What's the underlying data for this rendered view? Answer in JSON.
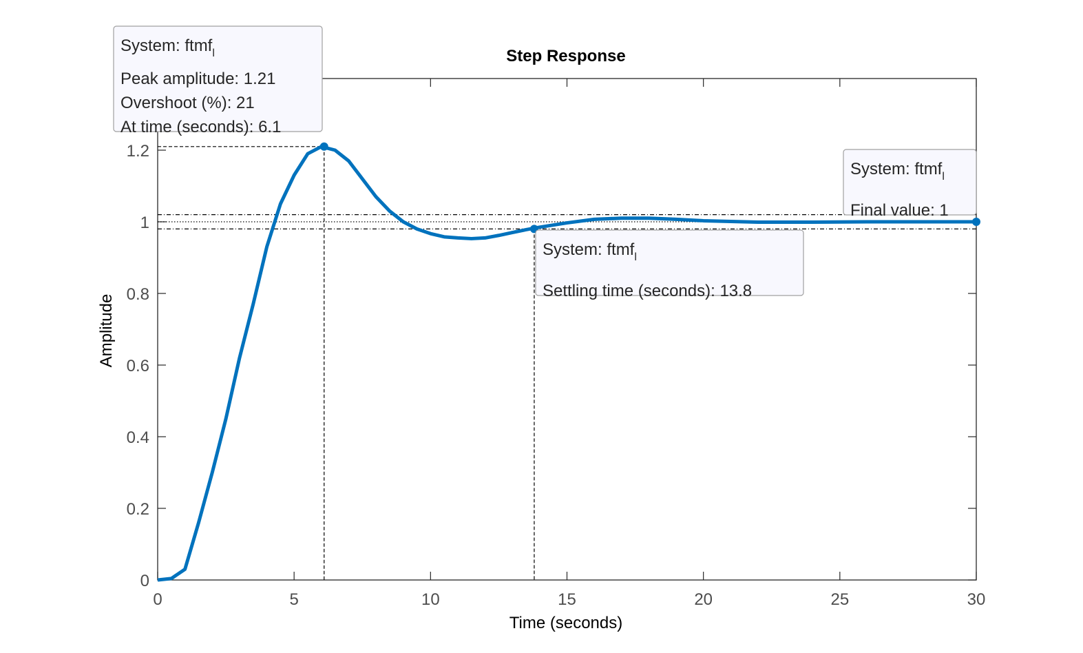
{
  "chart_data": {
    "type": "line",
    "title": "Step Response",
    "x_label": "Time (seconds)",
    "y_label": "Amplitude",
    "x": [
      0,
      0.5,
      1,
      1.5,
      2,
      2.5,
      3,
      3.5,
      4,
      4.5,
      5,
      5.5,
      6,
      6.5,
      7,
      7.5,
      8,
      8.5,
      9,
      9.5,
      10,
      10.5,
      11,
      11.5,
      12,
      12.5,
      13,
      13.5,
      14,
      15,
      16,
      17,
      18,
      19,
      20,
      22,
      24,
      26,
      28,
      30
    ],
    "series": [
      {
        "name": "ftmf",
        "color": "#0072bd",
        "values": [
          0,
          0.004,
          0.03,
          0.16,
          0.3,
          0.45,
          0.62,
          0.77,
          0.93,
          1.05,
          1.13,
          1.19,
          1.21,
          1.2,
          1.17,
          1.12,
          1.07,
          1.03,
          1.0,
          0.98,
          0.967,
          0.958,
          0.955,
          0.953,
          0.955,
          0.962,
          0.97,
          0.978,
          0.985,
          0.997,
          1.007,
          1.01,
          1.01,
          1.007,
          1.003,
          0.999,
          0.999,
          1.0,
          1.0,
          1.0
        ]
      }
    ],
    "xlim": [
      0,
      30
    ],
    "xticks": [
      0,
      5,
      10,
      15,
      20,
      25,
      30
    ],
    "ylim": [
      0,
      1.4
    ],
    "yticks": [
      0,
      0.2,
      0.4,
      0.6,
      0.8,
      1,
      1.2
    ],
    "settling_band": [
      0.98,
      1.02
    ],
    "final_value": 1,
    "annotations": [
      {
        "system": "System: ftmf",
        "subscript": "l",
        "lines": [
          "Peak amplitude: 1.21",
          "Overshoot (%): 21",
          "At time (seconds): 6.1"
        ],
        "x": 6.1,
        "y": 1.21
      },
      {
        "system": "System: ftmf",
        "subscript": "l",
        "lines": [
          "Settling time (seconds): 13.8"
        ],
        "x": 13.8,
        "y": 0.98
      },
      {
        "system": "System: ftmf",
        "subscript": "l",
        "lines": [
          "Final value: 1"
        ],
        "x": 30,
        "y": 1
      }
    ]
  }
}
